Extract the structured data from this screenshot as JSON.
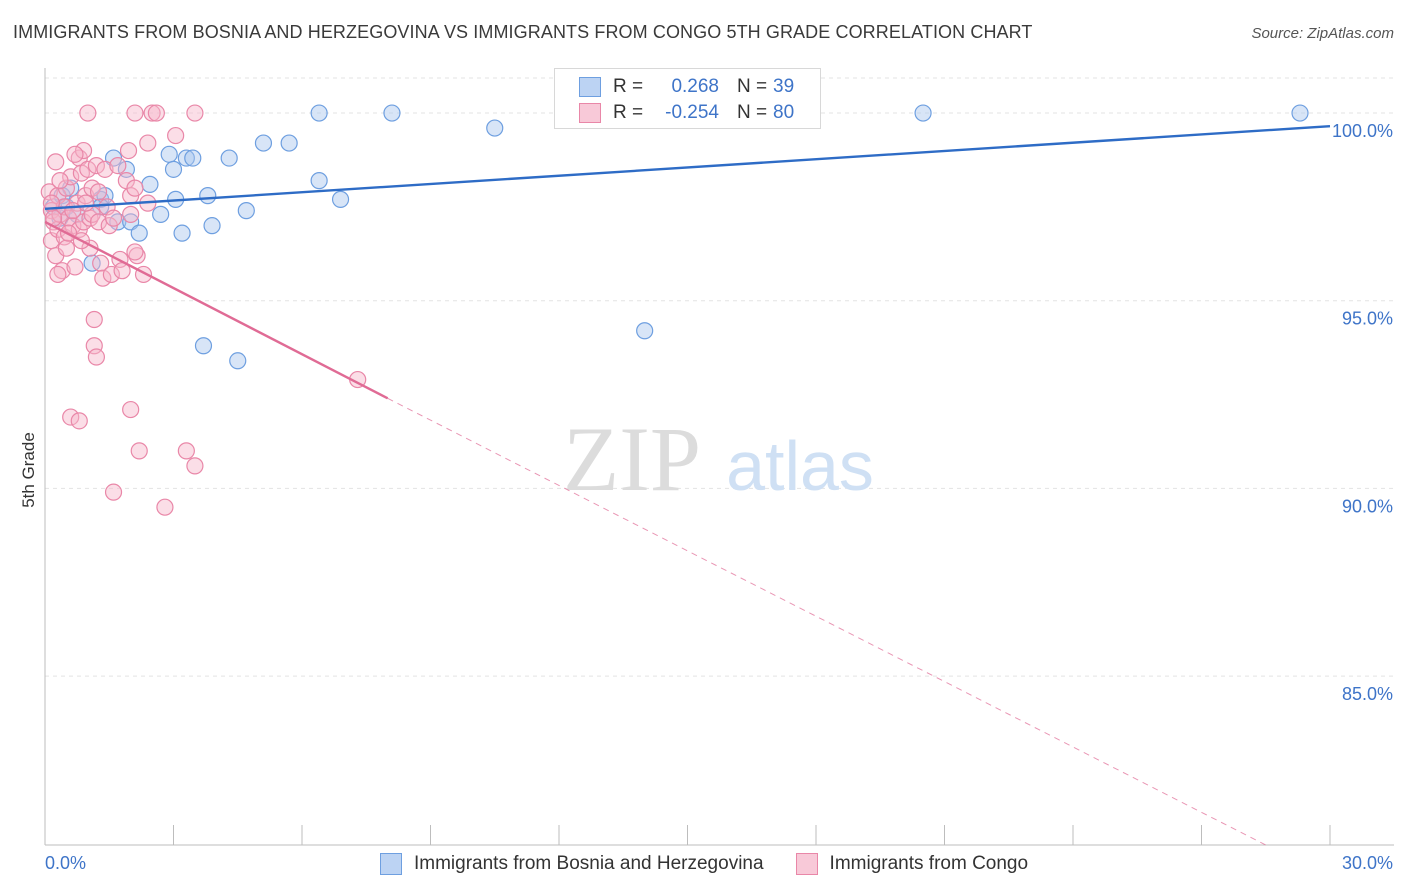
{
  "header": {
    "title": "IMMIGRANTS FROM BOSNIA AND HERZEGOVINA VS IMMIGRANTS FROM CONGO 5TH GRADE CORRELATION CHART",
    "source": "Source: ZipAtlas.com"
  },
  "watermark": {
    "zip": "ZIP",
    "atlas": "atlas"
  },
  "legend": {
    "rows": [
      {
        "r_label": "R =",
        "r_value": "0.268",
        "n_label": "N =",
        "n_value": "39"
      },
      {
        "r_label": "R =",
        "r_value": "-0.254",
        "n_label": "N =",
        "n_value": "80"
      }
    ]
  },
  "colors": {
    "blue_fill": "#a9c6ee",
    "blue_stroke": "#6e9fe0",
    "blue_line": "#2e6cc6",
    "pink_fill": "#f6b6ca",
    "pink_stroke": "#e987a8",
    "pink_line": "#e06b95",
    "grid": "#e3e3e3",
    "axis_text": "#3e74c8"
  },
  "chart_data": {
    "type": "scatter",
    "title": "IMMIGRANTS FROM BOSNIA AND HERZEGOVINA VS IMMIGRANTS FROM CONGO 5TH GRADE CORRELATION CHART",
    "xlabel": "",
    "ylabel": "5th Grade",
    "xlim": [
      0,
      30
    ],
    "ylim": [
      80.5,
      101.2
    ],
    "x_tick_labels": [
      "0.0%",
      "30.0%"
    ],
    "y_ticks": [
      {
        "value": 100,
        "label": "100.0%"
      },
      {
        "value": 95,
        "label": "95.0%"
      },
      {
        "value": 90,
        "label": "90.0%"
      },
      {
        "value": 85,
        "label": "85.0%"
      }
    ],
    "series": [
      {
        "name": "Immigrants from Bosnia and Herzegovina",
        "color": "blue",
        "trend": {
          "x": [
            0,
            30
          ],
          "y": [
            97.45,
            99.65
          ],
          "dashed_to": null
        },
        "points": [
          [
            0.2,
            97.5
          ],
          [
            0.35,
            97.2
          ],
          [
            0.4,
            97.8
          ],
          [
            0.5,
            97.5
          ],
          [
            0.6,
            98.0
          ],
          [
            0.75,
            97.3
          ],
          [
            1.1,
            96.0
          ],
          [
            1.3,
            97.7
          ],
          [
            1.4,
            97.8
          ],
          [
            1.6,
            98.8
          ],
          [
            1.7,
            97.1
          ],
          [
            1.9,
            98.5
          ],
          [
            2.0,
            97.1
          ],
          [
            2.2,
            96.8
          ],
          [
            2.45,
            98.1
          ],
          [
            2.7,
            97.3
          ],
          [
            2.9,
            98.9
          ],
          [
            3.0,
            98.5
          ],
          [
            3.05,
            97.7
          ],
          [
            3.2,
            96.8
          ],
          [
            3.3,
            98.8
          ],
          [
            3.45,
            98.8
          ],
          [
            3.7,
            93.8
          ],
          [
            3.8,
            97.8
          ],
          [
            3.9,
            97.0
          ],
          [
            4.3,
            98.8
          ],
          [
            4.5,
            93.4
          ],
          [
            4.7,
            97.4
          ],
          [
            5.1,
            99.2
          ],
          [
            5.7,
            99.2
          ],
          [
            6.4,
            98.2
          ],
          [
            6.4,
            100.0
          ],
          [
            6.9,
            97.7
          ],
          [
            8.1,
            100.0
          ],
          [
            10.5,
            99.6
          ],
          [
            14.0,
            94.2
          ],
          [
            20.5,
            100.0
          ],
          [
            29.3,
            100.0
          ],
          [
            1.3,
            97.5
          ]
        ]
      },
      {
        "name": "Immigrants from Congo",
        "color": "pink",
        "trend": {
          "x": [
            0,
            8
          ],
          "y": [
            97.1,
            92.4
          ],
          "dashed_to": [
            28.5,
            80.5
          ]
        },
        "points": [
          [
            0.1,
            97.9
          ],
          [
            0.15,
            97.4
          ],
          [
            0.15,
            96.6
          ],
          [
            0.2,
            97.1
          ],
          [
            0.25,
            98.7
          ],
          [
            0.25,
            96.2
          ],
          [
            0.3,
            97.8
          ],
          [
            0.3,
            96.9
          ],
          [
            0.35,
            97.3
          ],
          [
            0.4,
            95.8
          ],
          [
            0.45,
            97.5
          ],
          [
            0.45,
            96.7
          ],
          [
            0.5,
            98.0
          ],
          [
            0.5,
            96.4
          ],
          [
            0.55,
            97.2
          ],
          [
            0.6,
            98.3
          ],
          [
            0.6,
            91.9
          ],
          [
            0.65,
            97.0
          ],
          [
            0.7,
            95.9
          ],
          [
            0.75,
            97.6
          ],
          [
            0.8,
            98.8
          ],
          [
            0.8,
            96.9
          ],
          [
            0.8,
            91.8
          ],
          [
            0.85,
            98.4
          ],
          [
            0.9,
            99.0
          ],
          [
            0.9,
            97.1
          ],
          [
            0.95,
            97.8
          ],
          [
            1.0,
            100.0
          ],
          [
            1.0,
            98.5
          ],
          [
            1.05,
            97.2
          ],
          [
            1.1,
            98.0
          ],
          [
            1.1,
            97.3
          ],
          [
            1.15,
            94.5
          ],
          [
            1.15,
            93.8
          ],
          [
            1.2,
            98.6
          ],
          [
            1.2,
            93.5
          ],
          [
            1.25,
            97.1
          ],
          [
            1.3,
            96.0
          ],
          [
            1.35,
            95.6
          ],
          [
            1.4,
            98.5
          ],
          [
            1.45,
            97.5
          ],
          [
            1.5,
            97.0
          ],
          [
            1.55,
            95.7
          ],
          [
            1.6,
            89.9
          ],
          [
            1.7,
            98.6
          ],
          [
            1.75,
            96.1
          ],
          [
            1.8,
            95.8
          ],
          [
            1.9,
            98.2
          ],
          [
            1.95,
            99.0
          ],
          [
            2.0,
            92.1
          ],
          [
            2.0,
            97.8
          ],
          [
            2.0,
            97.3
          ],
          [
            2.1,
            100.0
          ],
          [
            2.1,
            98.0
          ],
          [
            2.15,
            96.2
          ],
          [
            2.2,
            91.0
          ],
          [
            2.3,
            95.7
          ],
          [
            2.4,
            99.2
          ],
          [
            2.5,
            100.0
          ],
          [
            2.6,
            100.0
          ],
          [
            2.8,
            89.5
          ],
          [
            3.05,
            99.4
          ],
          [
            3.3,
            91.0
          ],
          [
            3.5,
            90.6
          ],
          [
            3.5,
            100.0
          ],
          [
            7.3,
            92.9
          ],
          [
            0.2,
            97.2
          ],
          [
            0.35,
            98.2
          ],
          [
            0.55,
            96.8
          ],
          [
            0.7,
            98.9
          ],
          [
            0.95,
            97.6
          ],
          [
            1.25,
            97.9
          ],
          [
            1.05,
            96.4
          ],
          [
            0.15,
            97.6
          ],
          [
            0.65,
            97.4
          ],
          [
            1.6,
            97.2
          ],
          [
            2.1,
            96.3
          ],
          [
            2.4,
            97.6
          ],
          [
            0.3,
            95.7
          ],
          [
            0.85,
            96.6
          ]
        ]
      }
    ]
  }
}
